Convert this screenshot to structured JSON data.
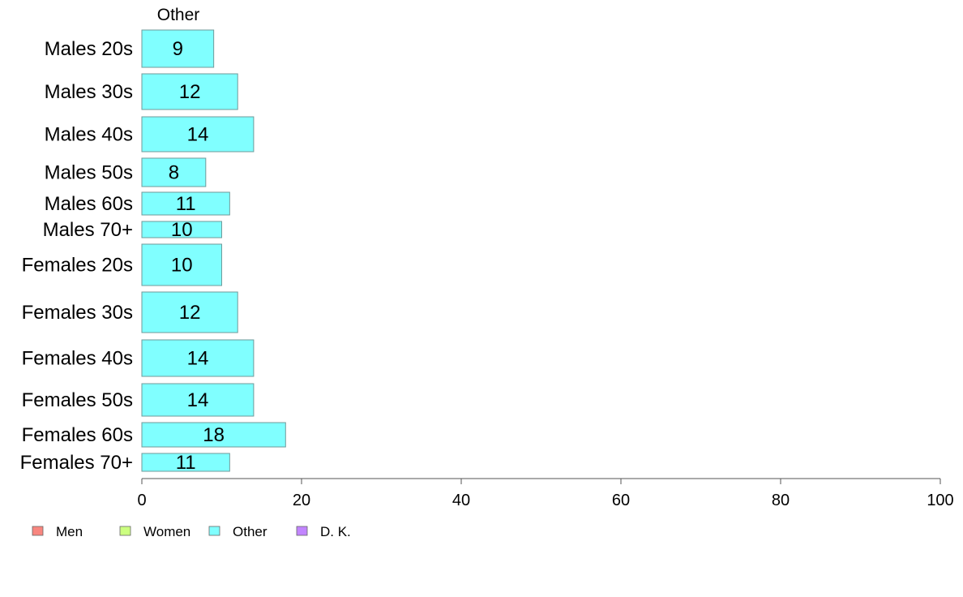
{
  "chart_data": {
    "type": "bar",
    "orientation": "horizontal",
    "stacked": true,
    "header": "Other",
    "categories": [
      "Males 20s",
      "Males 30s",
      "Males 40s",
      "Males 50s",
      "Males 60s",
      "Males 70+",
      "Females 20s",
      "Females 30s",
      "Females 40s",
      "Females 50s",
      "Females 60s",
      "Females 70+"
    ],
    "series": [
      {
        "name": "Other",
        "color": "#80FFFF",
        "values": [
          9,
          12,
          14,
          8,
          11,
          10,
          10,
          12,
          14,
          14,
          18,
          11
        ]
      }
    ],
    "xlim": [
      0,
      100
    ],
    "xticks": [
      0,
      20,
      40,
      60,
      80,
      100
    ],
    "legend": {
      "position": "bottom-left",
      "entries": [
        {
          "label": "Men",
          "color": "#F8867F"
        },
        {
          "label": "Women",
          "color": "#CCFF80"
        },
        {
          "label": "Other",
          "color": "#80FFFF"
        },
        {
          "label": "D. K.",
          "color": "#C285FF"
        }
      ]
    },
    "grid": false
  }
}
